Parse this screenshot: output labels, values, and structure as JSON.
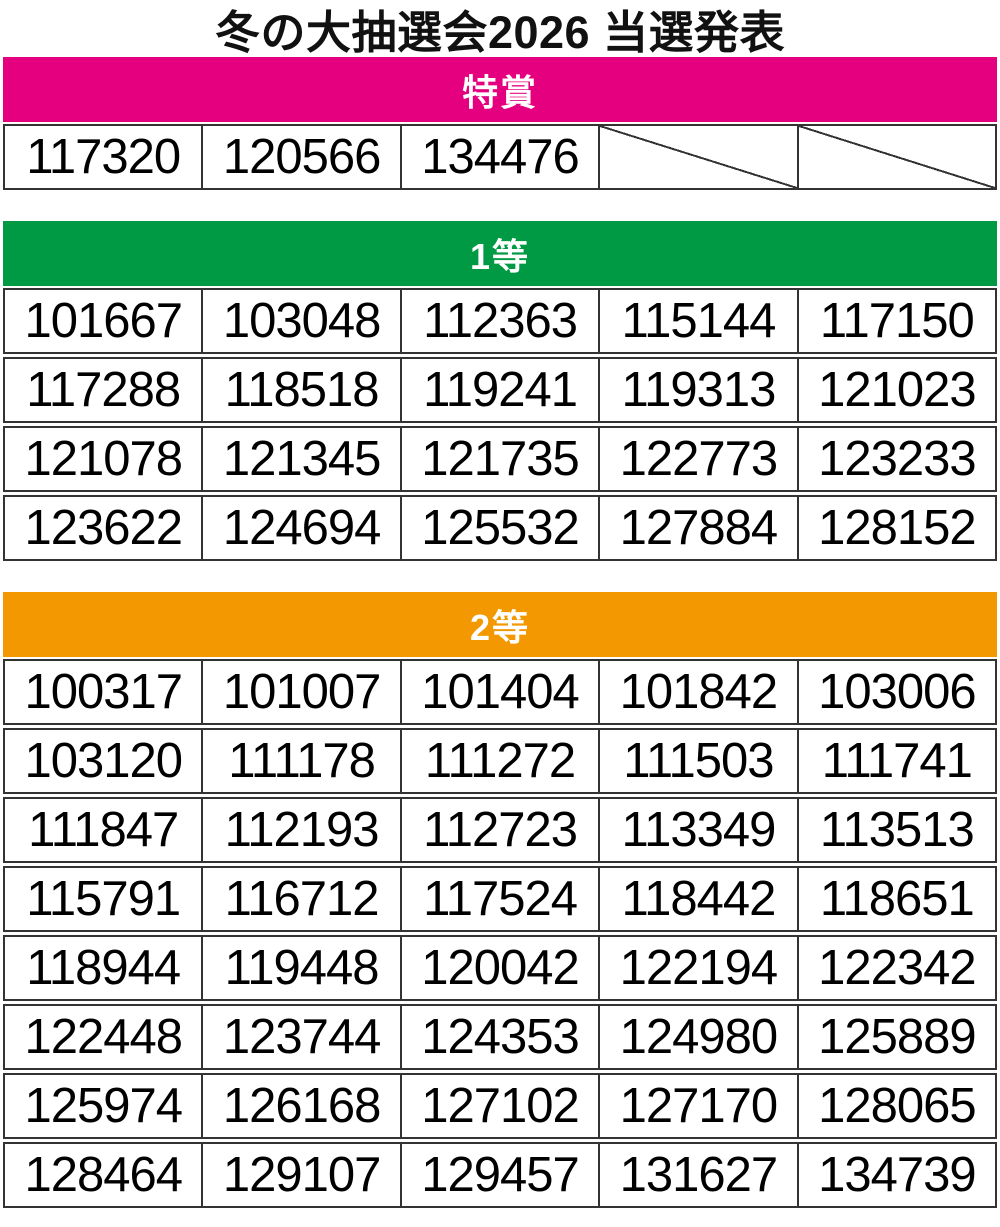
{
  "title": "冬の大抽選会2026 当選発表",
  "colors": {
    "special_prize_header": "#e4007f",
    "first_prize_header": "#009944",
    "second_prize_header": "#f39800",
    "table_border": "#333333",
    "header_text": "#ffffff",
    "number_text": "#000000"
  },
  "sections": [
    {
      "id": "special-prize",
      "label": "特賞",
      "header_color": "#e4007f",
      "rows": [
        [
          "117320",
          "120566",
          "134476",
          "",
          ""
        ]
      ]
    },
    {
      "id": "first-prize",
      "label": "1等",
      "header_color": "#009944",
      "rows": [
        [
          "101667",
          "103048",
          "112363",
          "115144",
          "117150"
        ],
        [
          "117288",
          "118518",
          "119241",
          "119313",
          "121023"
        ],
        [
          "121078",
          "121345",
          "121735",
          "122773",
          "123233"
        ],
        [
          "123622",
          "124694",
          "125532",
          "127884",
          "128152"
        ]
      ]
    },
    {
      "id": "second-prize",
      "label": "2等",
      "header_color": "#f39800",
      "rows": [
        [
          "100317",
          "101007",
          "101404",
          "101842",
          "103006"
        ],
        [
          "103120",
          "111178",
          "111272",
          "111503",
          "111741"
        ],
        [
          "111847",
          "112193",
          "112723",
          "113349",
          "113513"
        ],
        [
          "115791",
          "116712",
          "117524",
          "118442",
          "118651"
        ],
        [
          "118944",
          "119448",
          "120042",
          "122194",
          "122342"
        ],
        [
          "122448",
          "123744",
          "124353",
          "124980",
          "125889"
        ],
        [
          "125974",
          "126168",
          "127102",
          "127170",
          "128065"
        ],
        [
          "128464",
          "129107",
          "129457",
          "131627",
          "134739"
        ]
      ]
    }
  ]
}
